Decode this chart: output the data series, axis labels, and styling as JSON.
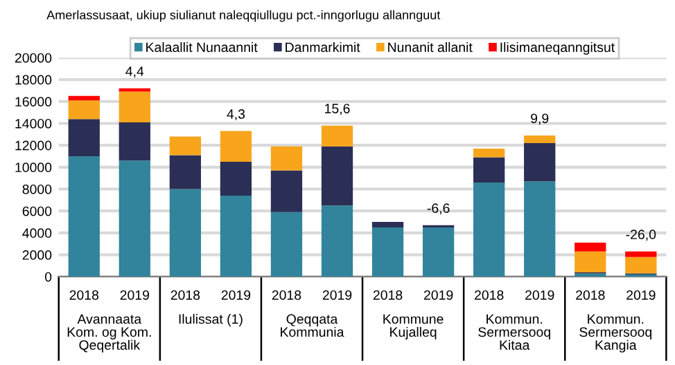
{
  "chart_data": {
    "type": "bar",
    "stacked": true,
    "title": "Amerlassusaat, ukiup siulianut naleqqiullugu pct.-inngorlugu allannguut",
    "categories": [
      "2018",
      "2019",
      "2018",
      "2019",
      "2018",
      "2019",
      "2018",
      "2019",
      "2018",
      "2019",
      "2018",
      "2019"
    ],
    "series": [
      {
        "name": "Kalaallit Nunaannit",
        "color": "#31849b",
        "values": [
          11000,
          10600,
          8000,
          7400,
          5900,
          6500,
          4500,
          4500,
          8600,
          8700,
          300,
          200
        ]
      },
      {
        "name": "Danmarkimit",
        "color": "#2b2f55",
        "values": [
          3400,
          3500,
          3100,
          3100,
          3800,
          5400,
          500,
          200,
          2300,
          3500,
          100,
          100
        ]
      },
      {
        "name": "Nunanit allanit",
        "color": "#f8a51c",
        "values": [
          1700,
          2800,
          1700,
          2800,
          2200,
          1900,
          0,
          0,
          800,
          700,
          1900,
          1500
        ]
      },
      {
        "name": "Ilisimaneqanngitsut",
        "color": "#ff0000",
        "values": [
          400,
          300,
          0,
          0,
          0,
          0,
          0,
          0,
          0,
          0,
          800,
          500
        ]
      }
    ],
    "ylim": [
      0,
      20000
    ],
    "yticks": [
      0,
      2000,
      4000,
      6000,
      8000,
      10000,
      12000,
      14000,
      16000,
      18000,
      20000
    ],
    "grid": "y",
    "legend": "top",
    "annotations": [
      "4,4",
      "4,3",
      "15,6",
      "-6,6",
      "9,9",
      "-26,0",
      "Avannaata\nKom. og Kom.\nQeqertalik",
      "Ilulissat (1)",
      "Qeqqata\nKommunia",
      "Kommune\nKujalleq",
      "Kommun.\nSermersooq\nKitaa",
      "Kommun.\nSermersooq\nKangia"
    ]
  }
}
